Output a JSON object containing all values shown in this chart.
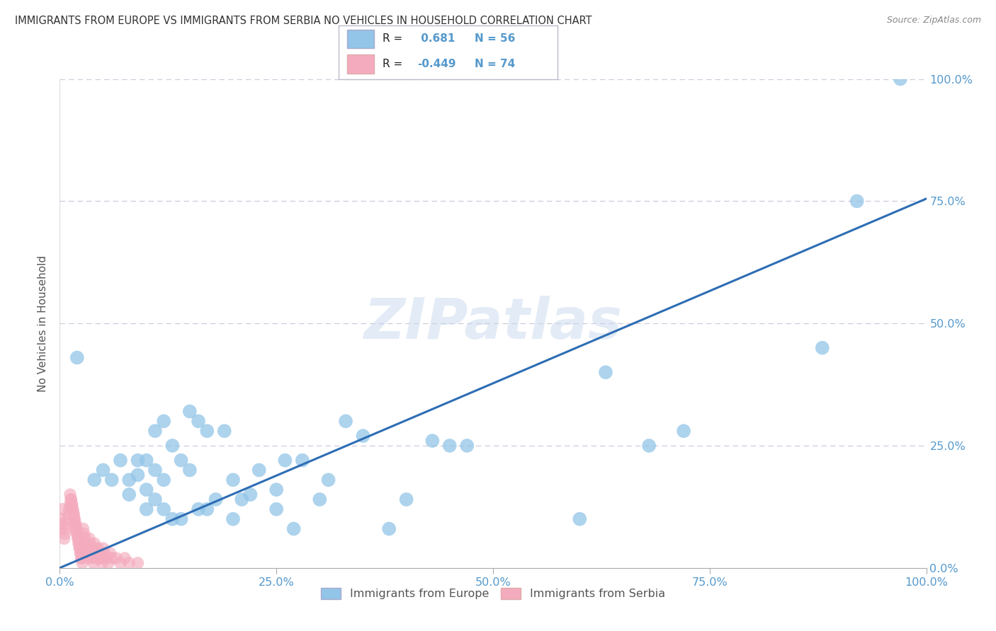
{
  "title": "IMMIGRANTS FROM EUROPE VS IMMIGRANTS FROM SERBIA NO VEHICLES IN HOUSEHOLD CORRELATION CHART",
  "source": "Source: ZipAtlas.com",
  "ylabel": "No Vehicles in Household",
  "watermark": "ZIPatlas",
  "legend_label1": "Immigrants from Europe",
  "legend_label2": "Immigrants from Serbia",
  "blue_color": "#92C5E8",
  "pink_color": "#F4ABBE",
  "line_color": "#2E6DB4",
  "grid_color": "#CCCCDD",
  "title_color": "#333333",
  "axis_label_color": "#555555",
  "tick_color": "#5599CC",
  "source_color": "#888888",
  "watermark_color": "#C8D8EE",
  "xlim": [
    0,
    1.0
  ],
  "ylim": [
    0,
    1.0
  ],
  "xticks": [
    0.0,
    0.25,
    0.5,
    0.75,
    1.0
  ],
  "yticks": [
    0.0,
    0.25,
    0.5,
    0.75,
    1.0
  ],
  "xtick_labels": [
    "0.0%",
    "25.0%",
    "50.0%",
    "75.0%",
    "100.0%"
  ],
  "ytick_labels": [
    "0.0%",
    "25.0%",
    "50.0%",
    "75.0%",
    "100.0%"
  ],
  "legend_r1_prefix": "R = ",
  "legend_r1_value": " 0.681",
  "legend_r1_n": "N = 56",
  "legend_r2_prefix": "R = ",
  "legend_r2_value": "-0.449",
  "legend_r2_n": "N = 74",
  "blue_x": [
    0.02,
    0.04,
    0.05,
    0.06,
    0.07,
    0.08,
    0.08,
    0.09,
    0.09,
    0.1,
    0.1,
    0.1,
    0.11,
    0.11,
    0.11,
    0.12,
    0.12,
    0.12,
    0.13,
    0.13,
    0.14,
    0.14,
    0.15,
    0.15,
    0.16,
    0.16,
    0.17,
    0.17,
    0.18,
    0.19,
    0.2,
    0.2,
    0.21,
    0.22,
    0.23,
    0.25,
    0.25,
    0.26,
    0.27,
    0.28,
    0.3,
    0.31,
    0.33,
    0.35,
    0.38,
    0.4,
    0.43,
    0.45,
    0.47,
    0.6,
    0.63,
    0.68,
    0.72,
    0.88,
    0.92,
    0.97
  ],
  "blue_y": [
    0.43,
    0.18,
    0.2,
    0.18,
    0.22,
    0.15,
    0.18,
    0.19,
    0.22,
    0.12,
    0.16,
    0.22,
    0.14,
    0.2,
    0.28,
    0.12,
    0.18,
    0.3,
    0.1,
    0.25,
    0.1,
    0.22,
    0.2,
    0.32,
    0.12,
    0.3,
    0.12,
    0.28,
    0.14,
    0.28,
    0.1,
    0.18,
    0.14,
    0.15,
    0.2,
    0.12,
    0.16,
    0.22,
    0.08,
    0.22,
    0.14,
    0.18,
    0.3,
    0.27,
    0.08,
    0.14,
    0.26,
    0.25,
    0.25,
    0.1,
    0.4,
    0.25,
    0.28,
    0.45,
    0.75,
    1.0
  ],
  "pink_x": [
    0.001,
    0.001,
    0.002,
    0.003,
    0.005,
    0.006,
    0.007,
    0.008,
    0.009,
    0.01,
    0.011,
    0.012,
    0.013,
    0.014,
    0.015,
    0.016,
    0.017,
    0.018,
    0.019,
    0.02,
    0.021,
    0.022,
    0.023,
    0.024,
    0.025,
    0.012,
    0.013,
    0.014,
    0.015,
    0.016,
    0.017,
    0.018,
    0.019,
    0.02,
    0.021,
    0.022,
    0.023,
    0.024,
    0.025,
    0.026,
    0.027,
    0.028,
    0.029,
    0.03,
    0.031,
    0.032,
    0.033,
    0.034,
    0.035,
    0.036,
    0.037,
    0.038,
    0.039,
    0.04,
    0.041,
    0.042,
    0.043,
    0.044,
    0.045,
    0.046,
    0.047,
    0.048,
    0.049,
    0.05,
    0.052,
    0.054,
    0.056,
    0.058,
    0.06,
    0.065,
    0.07,
    0.075,
    0.08,
    0.09
  ],
  "pink_y": [
    0.08,
    0.1,
    0.09,
    0.12,
    0.06,
    0.07,
    0.08,
    0.09,
    0.1,
    0.11,
    0.12,
    0.13,
    0.14,
    0.13,
    0.12,
    0.11,
    0.1,
    0.09,
    0.08,
    0.07,
    0.06,
    0.05,
    0.04,
    0.03,
    0.02,
    0.15,
    0.14,
    0.13,
    0.12,
    0.11,
    0.1,
    0.09,
    0.08,
    0.07,
    0.06,
    0.05,
    0.04,
    0.03,
    0.02,
    0.01,
    0.08,
    0.07,
    0.06,
    0.05,
    0.04,
    0.03,
    0.02,
    0.06,
    0.05,
    0.04,
    0.03,
    0.02,
    0.01,
    0.05,
    0.04,
    0.03,
    0.02,
    0.04,
    0.03,
    0.02,
    0.03,
    0.02,
    0.01,
    0.04,
    0.03,
    0.02,
    0.01,
    0.03,
    0.02,
    0.02,
    0.01,
    0.02,
    0.01,
    0.01
  ],
  "line_x": [
    0.0,
    1.0
  ],
  "line_y": [
    0.0,
    0.755
  ]
}
